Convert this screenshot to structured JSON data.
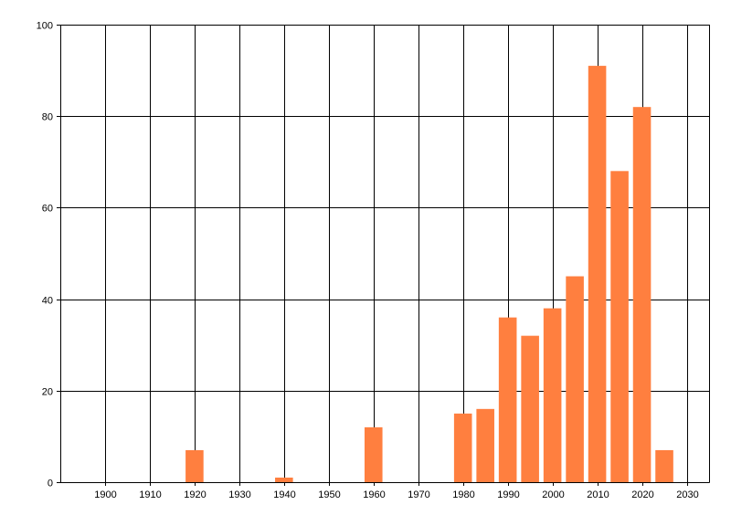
{
  "chart_data": {
    "type": "bar",
    "title": "",
    "xlabel": "",
    "ylabel": "",
    "x": [
      1920,
      1940,
      1960,
      1980,
      1985,
      1990,
      1995,
      2000,
      2005,
      2010,
      2015,
      2020,
      2025
    ],
    "values": [
      7,
      1,
      12,
      15,
      16,
      36,
      32,
      38,
      45,
      91,
      68,
      82,
      7
    ],
    "xlim": [
      1890,
      2035
    ],
    "ylim": [
      0,
      100
    ],
    "x_ticks": [
      1900,
      1910,
      1920,
      1930,
      1940,
      1950,
      1960,
      1970,
      1980,
      1990,
      2000,
      2010,
      2020,
      2030
    ],
    "y_ticks": [
      0,
      20,
      40,
      60,
      80,
      100
    ],
    "bar_width_years": 4,
    "grid": true,
    "bar_color": "#ff7f3f"
  }
}
